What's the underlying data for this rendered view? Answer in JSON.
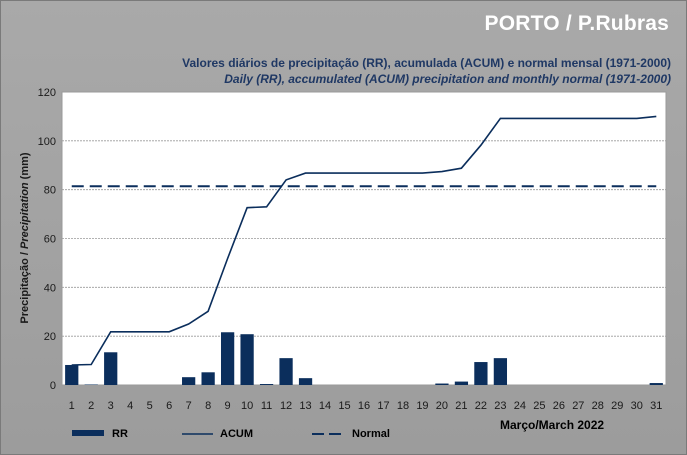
{
  "header": {
    "station": "PORTO / P.Rubras",
    "subtitle_pt": "Valores diários de precipitação (RR), acumulada (ACUM) e normal mensal (1971-2000)",
    "subtitle_en": "Daily (RR), accumulated (ACUM) precipitation and monthly normal (1971-2000)"
  },
  "chart_data": {
    "type": "bar",
    "title": "",
    "xlabel": "Março/March 2022",
    "ylabel_pt": "Precipitação / ",
    "ylabel_en": "Precipitation",
    "ylabel_unit": " (mm)",
    "ylim": [
      0,
      120
    ],
    "yticks": [
      0,
      20,
      40,
      60,
      80,
      100,
      120
    ],
    "grid": true,
    "legend_position": "bottom-left",
    "categories": [
      "1",
      "2",
      "3",
      "4",
      "5",
      "6",
      "7",
      "8",
      "9",
      "10",
      "11",
      "12",
      "13",
      "14",
      "15",
      "16",
      "17",
      "18",
      "19",
      "20",
      "21",
      "22",
      "23",
      "24",
      "25",
      "26",
      "27",
      "28",
      "29",
      "30",
      "31"
    ],
    "series": [
      {
        "name": "RR",
        "type": "bar",
        "color": "#0b2e5c",
        "values": [
          8.2,
          0.2,
          13.4,
          0,
          0,
          0,
          3.2,
          5.2,
          21.6,
          20.8,
          0.4,
          11,
          2.8,
          0,
          0,
          0,
          0,
          0,
          0,
          0.6,
          1.4,
          9.4,
          11,
          0,
          0,
          0,
          0,
          0,
          0,
          0,
          0.8
        ]
      },
      {
        "name": "ACUM",
        "type": "line",
        "color": "#0b2e5c",
        "values": [
          8.2,
          8.4,
          21.8,
          21.8,
          21.8,
          21.8,
          25,
          30.2,
          51.8,
          72.6,
          73,
          84,
          86.8,
          86.8,
          86.8,
          86.8,
          86.8,
          86.8,
          86.8,
          87.4,
          88.8,
          98.2,
          109.2,
          109.2,
          109.2,
          109.2,
          109.2,
          109.2,
          109.2,
          109.2,
          110
        ]
      },
      {
        "name": "Normal",
        "type": "line",
        "dashed": true,
        "color": "#0b2e5c",
        "value": 81.4
      }
    ]
  }
}
